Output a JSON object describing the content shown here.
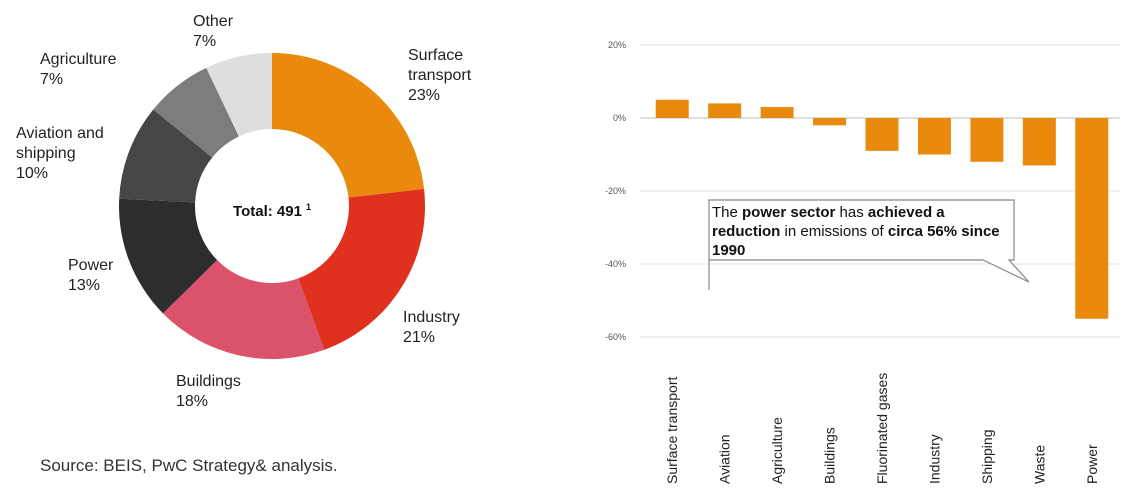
{
  "source": "Source: BEIS, PwC Strategy& analysis.",
  "donut": {
    "center_text": "Total: 491",
    "center_sup": "1"
  },
  "callout": {
    "parts": [
      {
        "text": "The ",
        "bold": false
      },
      {
        "text": "power sector",
        "bold": true
      },
      {
        "text": " has ",
        "bold": false
      },
      {
        "text": "achieved a reduction",
        "bold": true
      },
      {
        "text": " in emissions of ",
        "bold": false
      },
      {
        "text": "circa 56% since 1990",
        "bold": true
      }
    ]
  },
  "chart_data": [
    {
      "type": "pie",
      "donut": true,
      "slices": [
        {
          "label": "Surface transport",
          "lines": [
            "Surface",
            "transport",
            "23%"
          ],
          "value": 23,
          "color": "#ea8a0d"
        },
        {
          "label": "Industry",
          "lines": [
            "Industry",
            "21%"
          ],
          "value": 21,
          "color": "#e0301e"
        },
        {
          "label": "Buildings",
          "lines": [
            "Buildings",
            "18%"
          ],
          "value": 18,
          "color": "#db536a"
        },
        {
          "label": "Power",
          "lines": [
            "Power",
            "13%"
          ],
          "value": 13,
          "color": "#2d2d2d"
        },
        {
          "label": "Aviation and shipping",
          "lines": [
            "Aviation and",
            "shipping",
            "10%"
          ],
          "value": 10,
          "color": "#464646"
        },
        {
          "label": "Agriculture",
          "lines": [
            "Agriculture",
            "7%"
          ],
          "value": 7,
          "color": "#7d7d7d"
        },
        {
          "label": "Other",
          "lines": [
            "Other",
            "7%"
          ],
          "value": 7,
          "color": "#dedede"
        }
      ]
    },
    {
      "type": "bar",
      "categories": [
        "Surface transport",
        "Aviation",
        "Agriculture",
        "Buildings",
        "Fluorinated gases",
        "Industry",
        "Shipping",
        "Waste",
        "Power"
      ],
      "values": [
        5,
        4,
        3,
        -2,
        -9,
        -10,
        -12,
        -13,
        -55
      ],
      "ylim": [
        -60,
        20
      ],
      "yticks": [
        20,
        0,
        -20,
        -40,
        -60
      ],
      "ytick_labels": [
        "20%",
        "0%",
        "-20%",
        "-40%",
        "-60%"
      ],
      "grid": true,
      "color": "#ea8a0d"
    }
  ]
}
